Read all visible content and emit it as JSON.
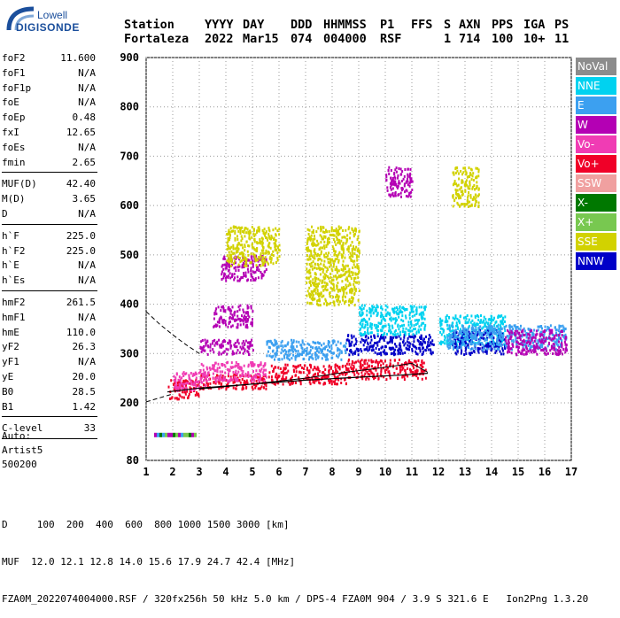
{
  "logo": {
    "line1": "Lowell",
    "line2": "DIGISONDE"
  },
  "header": {
    "row1": [
      "Station",
      "YYYY",
      "DAY",
      "DDD",
      "HHMMSS",
      "P1",
      "FFS",
      "S",
      "AXN",
      "PPS",
      "IGA",
      "PS"
    ],
    "row2": [
      "Fortaleza",
      "2022",
      "Mar15",
      "074",
      "004000",
      "RSF",
      "",
      "1",
      "714",
      "100",
      "10+",
      "11"
    ]
  },
  "params": {
    "group1": [
      {
        "k": "foF2",
        "v": "11.600"
      },
      {
        "k": "foF1",
        "v": "N/A"
      },
      {
        "k": "foF1p",
        "v": "N/A"
      },
      {
        "k": "foE",
        "v": "N/A"
      },
      {
        "k": "foEp",
        "v": "0.48"
      },
      {
        "k": "fxI",
        "v": "12.65"
      },
      {
        "k": "foEs",
        "v": "N/A"
      },
      {
        "k": "fmin",
        "v": "2.65"
      }
    ],
    "group2": [
      {
        "k": "MUF(D)",
        "v": "42.40"
      },
      {
        "k": "M(D)",
        "v": "3.65"
      },
      {
        "k": "D",
        "v": "N/A"
      }
    ],
    "group3": [
      {
        "k": "h`F",
        "v": "225.0"
      },
      {
        "k": "h`F2",
        "v": "225.0"
      },
      {
        "k": "h`E",
        "v": "N/A"
      },
      {
        "k": "h`Es",
        "v": "N/A"
      }
    ],
    "group4": [
      {
        "k": "hmF2",
        "v": "261.5"
      },
      {
        "k": "hmF1",
        "v": "N/A"
      },
      {
        "k": "hmE",
        "v": "110.0"
      },
      {
        "k": "yF2",
        "v": "26.3"
      },
      {
        "k": "yF1",
        "v": "N/A"
      },
      {
        "k": "yE",
        "v": "20.0"
      },
      {
        "k": "B0",
        "v": "28.5"
      },
      {
        "k": "B1",
        "v": "1.42"
      }
    ],
    "group5": [
      {
        "k": "C-level",
        "v": "33"
      }
    ]
  },
  "auto": {
    "l1": "Auto:",
    "l2": "Artist5",
    "l3": "500200"
  },
  "footer": {
    "line1": "D     100  200  400  600  800 1000 1500 3000 [km]",
    "line2": "MUF  12.0 12.1 12.8 14.0 15.6 17.9 24.7 42.4 [MHz]",
    "line3": "FZA0M_2022074004000.RSF / 320fx256h 50 kHz 5.0 km / DPS-4 FZA0M 904 / 3.9 S 321.6 E   Ion2Png 1.3.20"
  },
  "legend": [
    {
      "label": "NoVal",
      "color": "#8c8c8c"
    },
    {
      "label": "NNE",
      "color": "#00d2f0"
    },
    {
      "label": "E",
      "color": "#3ca0f0"
    },
    {
      "label": "W",
      "color": "#b400b4"
    },
    {
      "label": "Vo-",
      "color": "#f03cb4"
    },
    {
      "label": "Vo+",
      "color": "#f00028"
    },
    {
      "label": "SSW",
      "color": "#f0a0a0"
    },
    {
      "label": "X-",
      "color": "#007800"
    },
    {
      "label": "X+",
      "color": "#78c850"
    },
    {
      "label": "SSE",
      "color": "#d2d200"
    },
    {
      "label": "NNW",
      "color": "#0000c8"
    }
  ],
  "chart_data": {
    "type": "scatter",
    "xlim": [
      1,
      17
    ],
    "ylim": [
      80,
      900
    ],
    "x_ticks": [
      "1",
      "2",
      "3",
      "4",
      "5",
      "6",
      "7",
      "8",
      "9",
      "10",
      "11",
      "12",
      "13",
      "14",
      "15",
      "16",
      "17"
    ],
    "y_ticks": [
      "80",
      "200",
      "300",
      "400",
      "500",
      "600",
      "700",
      "800",
      "900"
    ],
    "grid": "dotted",
    "trace_clusters": [
      {
        "x": [
          1.8,
          3.0
        ],
        "y": [
          210,
          250
        ],
        "color": "#f00028"
      },
      {
        "x": [
          2.0,
          3.2
        ],
        "y": [
          225,
          265
        ],
        "color": "#f03cb4"
      },
      {
        "x": [
          3.0,
          5.5
        ],
        "y": [
          230,
          260
        ],
        "color": "#f00028"
      },
      {
        "x": [
          3.0,
          5.5
        ],
        "y": [
          245,
          285
        ],
        "color": "#f03cb4"
      },
      {
        "x": [
          3.0,
          5.0
        ],
        "y": [
          300,
          330
        ],
        "color": "#b400b4"
      },
      {
        "x": [
          3.5,
          5.0
        ],
        "y": [
          355,
          400
        ],
        "color": "#b400b4"
      },
      {
        "x": [
          3.8,
          5.5
        ],
        "y": [
          450,
          500
        ],
        "color": "#b400b4"
      },
      {
        "x": [
          4.0,
          6.0
        ],
        "y": [
          480,
          560
        ],
        "color": "#d2d200"
      },
      {
        "x": [
          5.5,
          8.5
        ],
        "y": [
          240,
          280
        ],
        "color": "#f00028"
      },
      {
        "x": [
          5.5,
          8.5
        ],
        "y": [
          290,
          330
        ],
        "color": "#3ca0f0"
      },
      {
        "x": [
          7.0,
          9.0
        ],
        "y": [
          400,
          560
        ],
        "color": "#d2d200"
      },
      {
        "x": [
          8.5,
          11.5
        ],
        "y": [
          250,
          290
        ],
        "color": "#f00028"
      },
      {
        "x": [
          8.5,
          11.8
        ],
        "y": [
          300,
          340
        ],
        "color": "#0000c8"
      },
      {
        "x": [
          9.0,
          11.5
        ],
        "y": [
          340,
          400
        ],
        "color": "#00d2f0"
      },
      {
        "x": [
          10.0,
          11.0
        ],
        "y": [
          620,
          680
        ],
        "color": "#b400b4"
      },
      {
        "x": [
          12.0,
          14.5
        ],
        "y": [
          320,
          380
        ],
        "color": "#00d2f0"
      },
      {
        "x": [
          12.5,
          14.5
        ],
        "y": [
          300,
          350
        ],
        "color": "#0000c8"
      },
      {
        "x": [
          12.3,
          16.8
        ],
        "y": [
          310,
          360
        ],
        "color": "#3ca0f0"
      },
      {
        "x": [
          14.5,
          16.8
        ],
        "y": [
          300,
          350
        ],
        "color": "#b400b4"
      },
      {
        "x": [
          12.5,
          13.5
        ],
        "y": [
          600,
          680
        ],
        "color": "#d2d200"
      }
    ],
    "bottom_strip": {
      "x": [
        1.3,
        2.9
      ],
      "y": 134
    },
    "virtual_height_curve": {
      "x": [
        1.8,
        3,
        5,
        7,
        9,
        10.5,
        11.6
      ],
      "y": [
        222,
        230,
        238,
        246,
        252,
        256,
        260
      ]
    },
    "dashed_curve": {
      "x": [
        1.0,
        1.5,
        2.0,
        2.5,
        3.0
      ],
      "y": [
        385,
        360,
        338,
        318,
        300
      ]
    },
    "dashed_curve_low": {
      "x": [
        1.0,
        1.5,
        2.0
      ],
      "y": [
        202,
        210,
        218
      ]
    },
    "profile_curve": {
      "x": [
        3.0,
        5,
        7,
        8.5,
        10,
        11.0,
        11.6
      ],
      "y": [
        228,
        238,
        250,
        262,
        272,
        280,
        262
      ]
    }
  }
}
